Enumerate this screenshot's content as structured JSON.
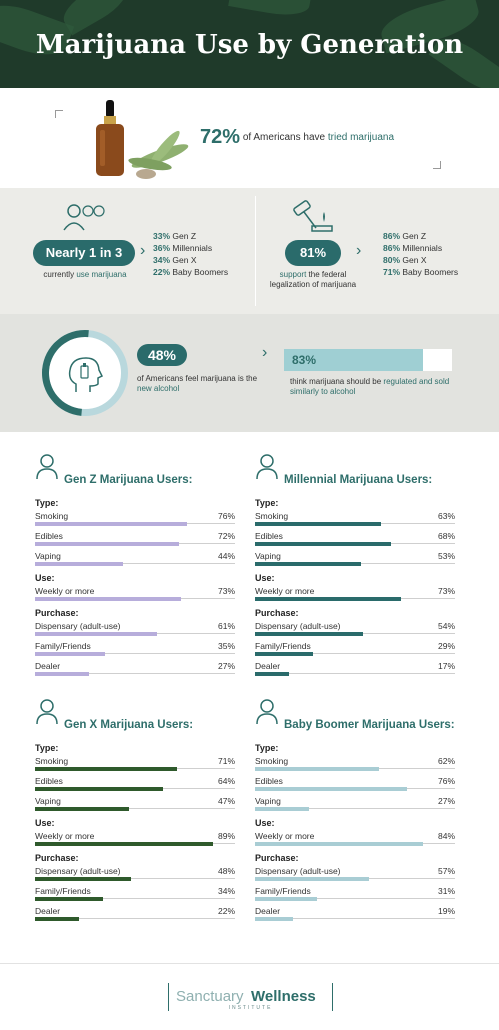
{
  "header": {
    "title": "Marijuana Use by Generation"
  },
  "hero": {
    "percent": "72%",
    "text_pre": "of Americans have",
    "text_highlight": "tried marijuana"
  },
  "current_use": {
    "pill": "Nearly 1 in 3",
    "caption_pre": "currently",
    "caption_hl": "use marijuana",
    "list": [
      {
        "value": "33%",
        "label": "Gen Z"
      },
      {
        "value": "36%",
        "label": "Millennials"
      },
      {
        "value": "34%",
        "label": "Gen X"
      },
      {
        "value": "22%",
        "label": "Baby Boomers"
      }
    ]
  },
  "legalization": {
    "pill": "81%",
    "caption_hl": "support",
    "caption_rest": "the federal legalization of marijuana",
    "list": [
      {
        "value": "86%",
        "label": "Gen Z"
      },
      {
        "value": "86%",
        "label": "Millennials"
      },
      {
        "value": "80%",
        "label": "Gen X"
      },
      {
        "value": "71%",
        "label": "Baby Boomers"
      }
    ]
  },
  "alcohol": {
    "pill": "48%",
    "caption_pre": "of Americans feel marijuana is the",
    "caption_hl": "new alcohol",
    "bar_value": "83%",
    "bar_fraction": 0.83,
    "bar_caption_pre": "think marijuana should be",
    "bar_caption_hl": "regulated and sold similarly to alcohol"
  },
  "colors": {
    "teal": "#2e6e6a",
    "genz": "#b7addb",
    "millennial": "#2a6b6b",
    "genx": "#2f5a2c",
    "boomer": "#a9cdd4"
  },
  "panels": [
    {
      "title": "Gen Z Marijuana Users:",
      "icon": "gen-z-person-icon",
      "color": "#b7addb",
      "type_label": "Type:",
      "use_label": "Use:",
      "purchase_label": "Purchase:",
      "type": [
        {
          "label": "Smoking",
          "value": "76%",
          "v": 76
        },
        {
          "label": "Edibles",
          "value": "72%",
          "v": 72
        },
        {
          "label": "Vaping",
          "value": "44%",
          "v": 44
        }
      ],
      "use": [
        {
          "label": "Weekly or more",
          "value": "73%",
          "v": 73
        }
      ],
      "purchase": [
        {
          "label": "Dispensary (adult-use)",
          "value": "61%",
          "v": 61
        },
        {
          "label": "Family/Friends",
          "value": "35%",
          "v": 35
        },
        {
          "label": "Dealer",
          "value": "27%",
          "v": 27
        }
      ]
    },
    {
      "title": "Millennial Marijuana Users:",
      "icon": "millennial-person-icon",
      "color": "#2a6b6b",
      "type_label": "Type:",
      "use_label": "Use:",
      "purchase_label": "Purchase:",
      "type": [
        {
          "label": "Smoking",
          "value": "63%",
          "v": 63
        },
        {
          "label": "Edibles",
          "value": "68%",
          "v": 68
        },
        {
          "label": "Vaping",
          "value": "53%",
          "v": 53
        }
      ],
      "use": [
        {
          "label": "Weekly or more",
          "value": "73%",
          "v": 73
        }
      ],
      "purchase": [
        {
          "label": "Dispensary (adult-use)",
          "value": "54%",
          "v": 54
        },
        {
          "label": "Family/Friends",
          "value": "29%",
          "v": 29
        },
        {
          "label": "Dealer",
          "value": "17%",
          "v": 17
        }
      ]
    },
    {
      "title": "Gen X Marijuana Users:",
      "icon": "gen-x-person-icon",
      "color": "#2f5a2c",
      "type_label": "Type:",
      "use_label": "Use:",
      "purchase_label": "Purchase:",
      "type": [
        {
          "label": "Smoking",
          "value": "71%",
          "v": 71
        },
        {
          "label": "Edibles",
          "value": "64%",
          "v": 64
        },
        {
          "label": "Vaping",
          "value": "47%",
          "v": 47
        }
      ],
      "use": [
        {
          "label": "Weekly or more",
          "value": "89%",
          "v": 89
        }
      ],
      "purchase": [
        {
          "label": "Dispensary (adult-use)",
          "value": "48%",
          "v": 48
        },
        {
          "label": "Family/Friends",
          "value": "34%",
          "v": 34
        },
        {
          "label": "Dealer",
          "value": "22%",
          "v": 22
        }
      ]
    },
    {
      "title": "Baby Boomer Marijuana Users:",
      "icon": "baby-boomer-person-icon",
      "color": "#a9cdd4",
      "type_label": "Type:",
      "use_label": "Use:",
      "purchase_label": "Purchase:",
      "type": [
        {
          "label": "Smoking",
          "value": "62%",
          "v": 62
        },
        {
          "label": "Edibles",
          "value": "76%",
          "v": 76
        },
        {
          "label": "Vaping",
          "value": "27%",
          "v": 27
        }
      ],
      "use": [
        {
          "label": "Weekly or more",
          "value": "84%",
          "v": 84
        }
      ],
      "purchase": [
        {
          "label": "Dispensary (adult-use)",
          "value": "57%",
          "v": 57
        },
        {
          "label": "Family/Friends",
          "value": "31%",
          "v": 31
        },
        {
          "label": "Dealer",
          "value": "19%",
          "v": 19
        }
      ]
    }
  ],
  "footer": {
    "brand_light": "Sanctuary",
    "brand_bold": "Wellness",
    "brand_sub": "INSTITUTE"
  }
}
